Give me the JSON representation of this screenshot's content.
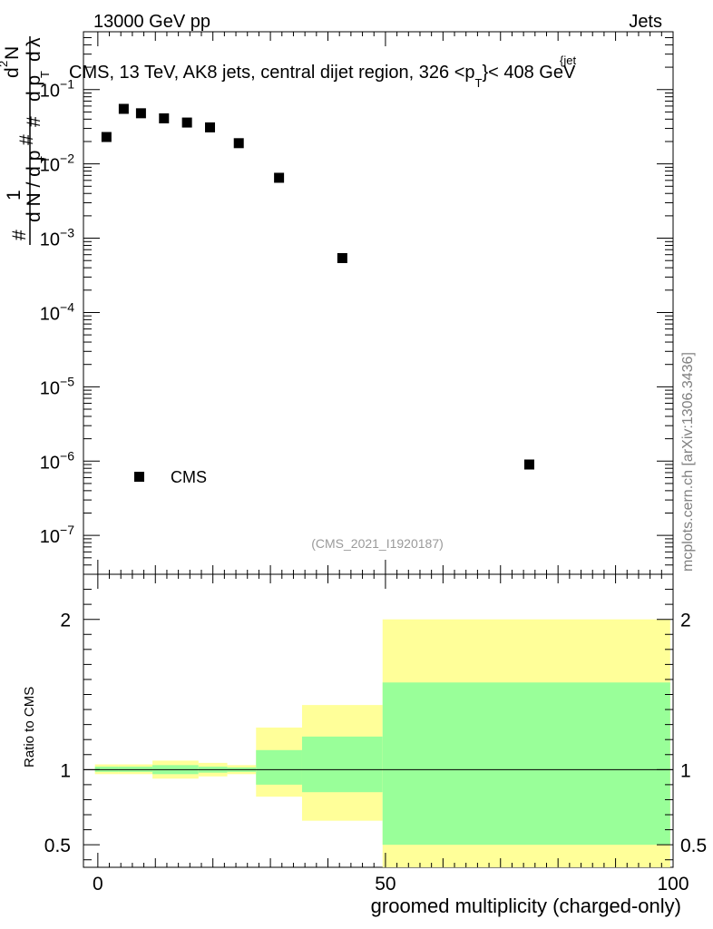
{
  "header": {
    "left": "13000 GeV pp",
    "right": "Jets"
  },
  "watermark": "mcplots.cern.ch [arXiv:1306.3436]",
  "analysis_id": "(CMS_2021_I1920187)",
  "colors": {
    "band_outer": "#ffff99",
    "band_inner": "#99ff99",
    "marker": "#000000"
  },
  "chart_data": [
    {
      "type": "scatter",
      "title": "CMS, 13 TeV, AK8 jets, central dijet region, 326 <p_T^{jet}< 408 GeV",
      "title_parts": {
        "main": "CMS, 13 TeV, AK8 jets, central dijet region, 326 <p",
        "sub": "T",
        "sup": "{jet",
        "end": "}< 408 GeV"
      },
      "ylabel_parts": {
        "one": "1",
        "lead": "#",
        "d2n": "d",
        "sup2": "2",
        "N": "N",
        "dpt": "d p",
        "T": "T",
        "dlam": "d",
        "lam": "λ",
        "hash2": "#",
        "dpT2": "d p",
        "T2": "T",
        "dN": "d N / d p",
        "T3": "T",
        "hash3": "#"
      },
      "yscale": "log",
      "ylim": [
        3e-08,
        0.6
      ],
      "xlim": [
        -2.5,
        100
      ],
      "ytick_labels": [
        {
          "base": "10",
          "exp": "−1",
          "value": 0.1
        },
        {
          "base": "10",
          "exp": "−2",
          "value": 0.01
        },
        {
          "base": "10",
          "exp": "−3",
          "value": 0.001
        },
        {
          "base": "10",
          "exp": "−4",
          "value": 0.0001
        },
        {
          "base": "10",
          "exp": "−5",
          "value": 1e-05
        },
        {
          "base": "10",
          "exp": "−6",
          "value": 1e-06
        },
        {
          "base": "10",
          "exp": "−7",
          "value": 1e-07
        }
      ],
      "series": [
        {
          "name": "CMS",
          "x": [
            1.5,
            4.5,
            7.5,
            11.5,
            15.5,
            19.5,
            24.5,
            31.5,
            42.5,
            75
          ],
          "values": [
            0.023,
            0.055,
            0.048,
            0.041,
            0.036,
            0.031,
            0.019,
            0.0065,
            0.00054,
            9e-07
          ]
        }
      ],
      "legend": {
        "label": "CMS",
        "placement": "bottom-left"
      }
    },
    {
      "type": "area",
      "ylabel": "Ratio to CMS",
      "xlabel": "groomed multiplicity (charged-only)",
      "xlim": [
        -2.5,
        100
      ],
      "ylim": [
        0.35,
        2.3
      ],
      "xtick_labels": [
        "0",
        "50",
        "100"
      ],
      "ytick_labels": [
        "0.5",
        "1",
        "2"
      ],
      "reference_line": 1,
      "bins": [
        {
          "lo": -0.5,
          "hi": 3.5,
          "inner": [
            0.985,
            1.02
          ],
          "outer": [
            0.97,
            1.035
          ]
        },
        {
          "lo": 3.5,
          "hi": 9.5,
          "inner": [
            0.985,
            1.02
          ],
          "outer": [
            0.97,
            1.035
          ]
        },
        {
          "lo": 9.5,
          "hi": 17.5,
          "inner": [
            0.97,
            1.03
          ],
          "outer": [
            0.94,
            1.06
          ]
        },
        {
          "lo": 17.5,
          "hi": 22.5,
          "inner": [
            0.98,
            1.02
          ],
          "outer": [
            0.955,
            1.045
          ]
        },
        {
          "lo": 22.5,
          "hi": 27.5,
          "inner": [
            0.985,
            1.015
          ],
          "outer": [
            0.97,
            1.03
          ]
        },
        {
          "lo": 27.5,
          "hi": 35.5,
          "inner": [
            0.9,
            1.13
          ],
          "outer": [
            0.82,
            1.28
          ]
        },
        {
          "lo": 35.5,
          "hi": 49.5,
          "inner": [
            0.85,
            1.22
          ],
          "outer": [
            0.66,
            1.43
          ]
        },
        {
          "lo": 49.5,
          "hi": 99.5,
          "inner": [
            0.5,
            1.58
          ],
          "outer": [
            0.35,
            2.0
          ]
        }
      ]
    }
  ]
}
